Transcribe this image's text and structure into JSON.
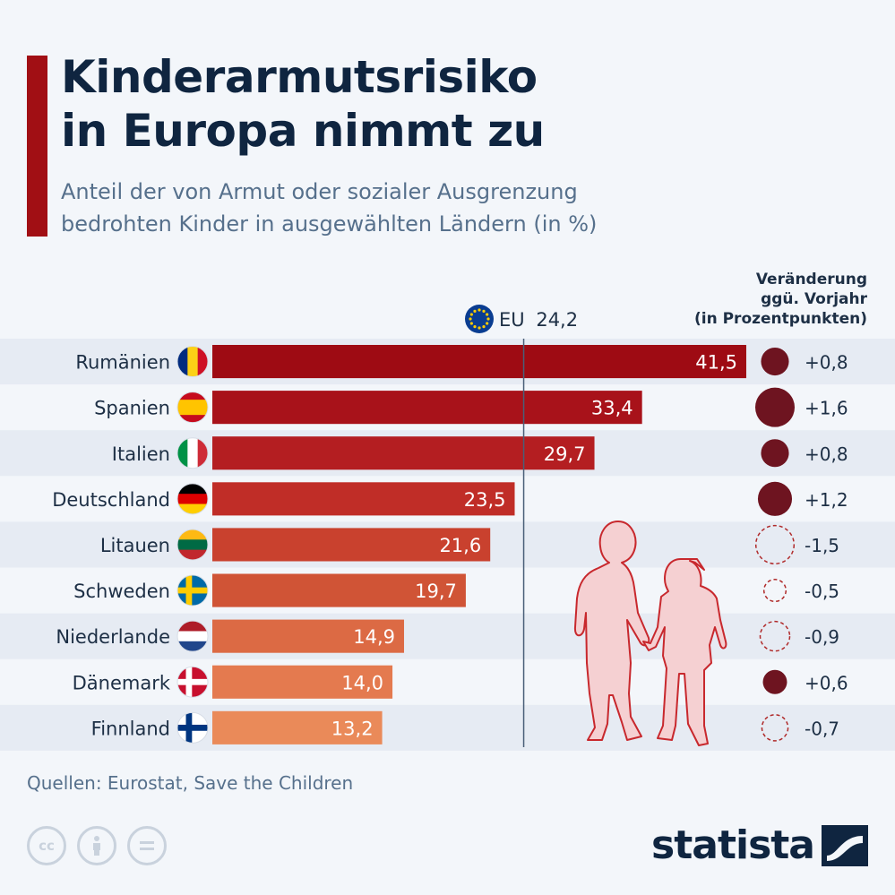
{
  "header": {
    "title_line1": "Kinderarmutsrisiko",
    "title_line2": "in Europa nimmt zu",
    "subtitle_line1": "Anteil der von Armut oder sozialer Ausgrenzung",
    "subtitle_line2": "bedrohten Kinder in ausgewählten Ländern (in %)"
  },
  "change_header": {
    "line1": "Veränderung",
    "line2": "ggü. Vorjahr",
    "line3": "(in Prozentpunkten)"
  },
  "reference": {
    "label": "EU",
    "value_label": "24,2",
    "value": 24.2
  },
  "chart_data": {
    "type": "bar",
    "orientation": "horizontal",
    "title": "Kinderarmutsrisiko in Europa nimmt zu",
    "subtitle": "Anteil der von Armut oder sozialer Ausgrenzung bedrohten Kinder in ausgewählten Ländern (in %)",
    "categories": [
      "Rumänien",
      "Spanien",
      "Italien",
      "Deutschland",
      "Litauen",
      "Schweden",
      "Niederlande",
      "Dänemark",
      "Finnland"
    ],
    "values": [
      41.5,
      33.4,
      29.7,
      23.5,
      21.6,
      19.7,
      14.9,
      14.0,
      13.2
    ],
    "value_labels": [
      "41,5",
      "33,4",
      "29,7",
      "23,5",
      "21,6",
      "19,7",
      "14,9",
      "14,0",
      "13,2"
    ],
    "reference_line": {
      "label": "EU",
      "value": 24.2
    },
    "change": {
      "label": "Veränderung ggü. Vorjahr (in Prozentpunkten)",
      "values": [
        0.8,
        1.6,
        0.8,
        1.2,
        -1.5,
        -0.5,
        -0.9,
        0.6,
        -0.7
      ],
      "value_labels": [
        "+0,8",
        "+1,6",
        "+0,8",
        "+1,2",
        "-1,5",
        "-0,5",
        "-0,9",
        "+0,6",
        "-0,7"
      ]
    },
    "xlim": [
      0,
      41.5
    ]
  },
  "flags": [
    {
      "country": "Rumänien",
      "type": "vertical",
      "colors": [
        "#002b7f",
        "#fcd116",
        "#ce1126"
      ]
    },
    {
      "country": "Spanien",
      "type": "horizontal",
      "stripes": [
        1,
        2,
        1
      ],
      "colors": [
        "#c60b1e",
        "#ffc400",
        "#c60b1e"
      ]
    },
    {
      "country": "Italien",
      "type": "vertical",
      "colors": [
        "#009246",
        "#ffffff",
        "#ce2b37"
      ]
    },
    {
      "country": "Deutschland",
      "type": "horizontal",
      "colors": [
        "#000000",
        "#dd0000",
        "#ffce00"
      ]
    },
    {
      "country": "Litauen",
      "type": "horizontal",
      "colors": [
        "#fdb913",
        "#006a44",
        "#c1272d"
      ]
    },
    {
      "country": "Schweden",
      "type": "nordic",
      "colors": [
        "#006aa7",
        "#fecc00"
      ]
    },
    {
      "country": "Niederlande",
      "type": "horizontal",
      "colors": [
        "#ae1c28",
        "#ffffff",
        "#21468b"
      ]
    },
    {
      "country": "Dänemark",
      "type": "nordic",
      "colors": [
        "#c8102e",
        "#ffffff"
      ]
    },
    {
      "country": "Finnland",
      "type": "nordic",
      "colors": [
        "#ffffff",
        "#003580"
      ]
    }
  ],
  "colors": {
    "bars": [
      "#9e0b13",
      "#a8121a",
      "#b41e21",
      "#c02d27",
      "#c9412e",
      "#d05436",
      "#dc6a44",
      "#e47a4f",
      "#ea8a59"
    ],
    "change_positive": "#6e1420",
    "change_negative_outline": "#b02a2a",
    "accent": "#a10f14",
    "eu_blue": "#0a3d91",
    "eu_star": "#ffcc00"
  },
  "footer": {
    "source": "Quellen: Eurostat, Save the Children",
    "brand": "statista",
    "license_icons": [
      "cc-icon",
      "attribution-icon",
      "no-derivatives-icon"
    ]
  }
}
